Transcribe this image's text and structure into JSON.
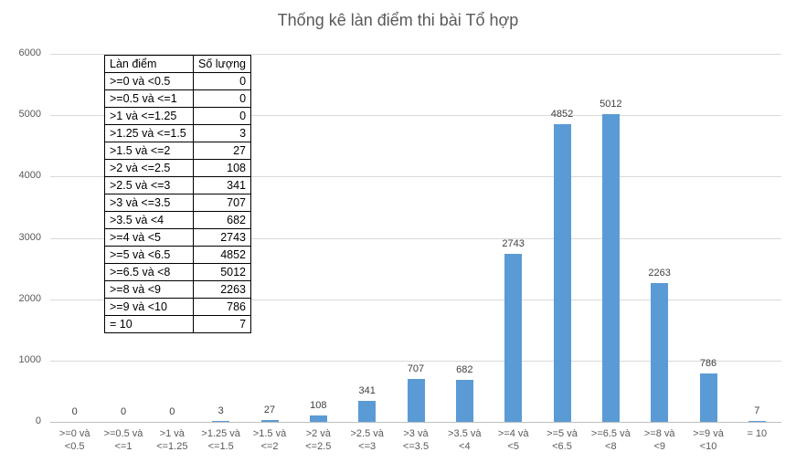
{
  "chart_data": {
    "type": "bar",
    "title": "Thống kê làn điểm thi bài Tổ hợp",
    "categories": [
      ">=0 và <0.5",
      ">=0.5 và <=1",
      ">1 và <=1.25",
      ">1.25 và <=1.5",
      ">1.5 và <=2",
      ">2 và <=2.5",
      ">2.5 và <=3",
      ">3 và <=3.5",
      ">3.5 và <4",
      ">=4 và <5",
      ">=5 và <6.5",
      ">=6.5 và <8",
      ">=8 và <9",
      ">=9 và <10",
      "= 10"
    ],
    "category_tick_lines": [
      [
        ">=0 và",
        "<0.5"
      ],
      [
        ">=0.5 và",
        "<=1"
      ],
      [
        ">1 và",
        "<=1.25"
      ],
      [
        ">1.25 và",
        "<=1.5"
      ],
      [
        ">1.5 và",
        "<=2"
      ],
      [
        ">2 và",
        "<=2.5"
      ],
      [
        ">2.5 và",
        "<=3"
      ],
      [
        ">3 và",
        "<=3.5"
      ],
      [
        ">3.5 và",
        "<4"
      ],
      [
        ">=4 và",
        "<5"
      ],
      [
        ">=5 và",
        "<6.5"
      ],
      [
        ">=6.5 và",
        "<8"
      ],
      [
        ">=8 và",
        "<9"
      ],
      [
        ">=9 và",
        "<10"
      ],
      [
        "= 10",
        ""
      ]
    ],
    "values": [
      0,
      0,
      0,
      3,
      27,
      108,
      341,
      707,
      682,
      2743,
      4852,
      5012,
      2263,
      786,
      7
    ],
    "data_labels": [
      "0",
      "0",
      "0",
      "3",
      "27",
      "108",
      "341",
      "707",
      "682",
      "2743",
      "4852",
      "5012",
      "2263",
      "786",
      "7"
    ],
    "xlabel": "",
    "ylabel": "",
    "ylim": [
      0,
      6000
    ],
    "yticks": [
      0,
      1000,
      2000,
      3000,
      4000,
      5000,
      6000
    ],
    "grid": true,
    "legend": false
  },
  "table": {
    "headers": [
      "Làn điểm",
      "Số lượng"
    ],
    "rows": [
      [
        ">=0 và <0.5",
        "0"
      ],
      [
        ">=0.5 và <=1",
        "0"
      ],
      [
        ">1 và <=1.25",
        "0"
      ],
      [
        ">1.25 và <=1.5",
        "3"
      ],
      [
        ">1.5 và <=2",
        "27"
      ],
      [
        ">2 và <=2.5",
        "108"
      ],
      [
        ">2.5 và <=3",
        "341"
      ],
      [
        ">3 và <=3.5",
        "707"
      ],
      [
        ">3.5 và <4",
        "682"
      ],
      [
        ">=4 và <5",
        "2743"
      ],
      [
        ">=5 và <6.5",
        "4852"
      ],
      [
        ">=6.5 và <8",
        "5012"
      ],
      [
        ">=8 và <9",
        "2263"
      ],
      [
        ">=9 và <10",
        "786"
      ],
      [
        "= 10",
        "7"
      ]
    ]
  },
  "colors": {
    "bar": "#5B9BD5",
    "gridline": "#D9D9D9",
    "axis_line": "#BFBFBF",
    "axis_text": "#595959",
    "title_text": "#595959",
    "data_label_text": "#404040",
    "table_border": "#000000",
    "background": "#FFFFFF"
  }
}
